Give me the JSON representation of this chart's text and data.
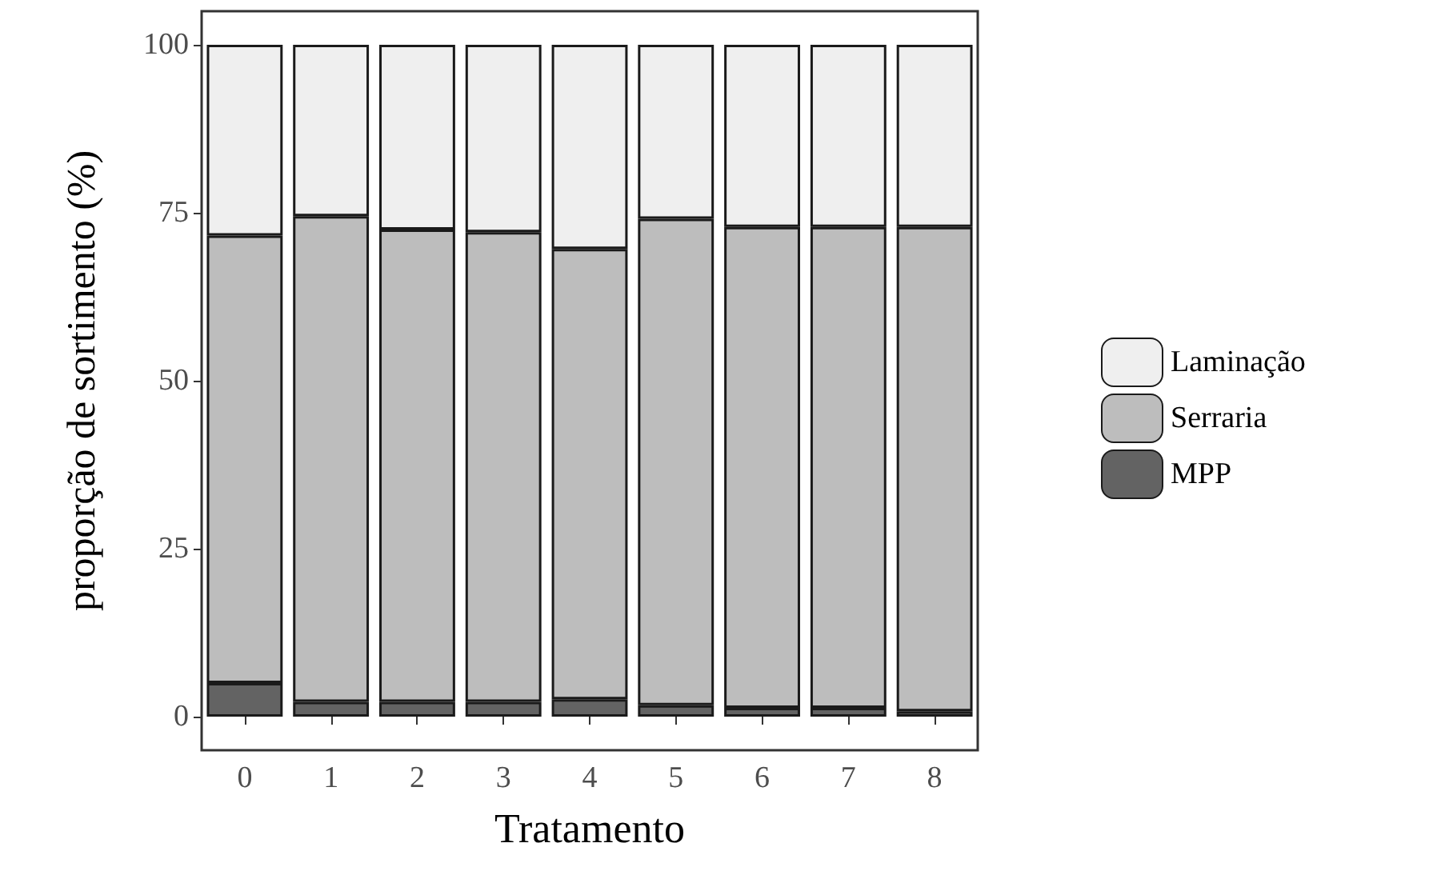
{
  "chart_data": {
    "type": "bar",
    "stacked": true,
    "xlabel": "Tratamento",
    "ylabel": "proporção de sortimento (%)",
    "categories": [
      "0",
      "1",
      "2",
      "3",
      "4",
      "5",
      "6",
      "7",
      "8"
    ],
    "series": [
      {
        "name": "MPP",
        "color": "#636363",
        "values": [
          5.0,
          2.2,
          2.2,
          2.2,
          2.6,
          1.7,
          1.3,
          1.3,
          0.8
        ]
      },
      {
        "name": "Serraria",
        "color": "#bdbdbd",
        "values": [
          66.6,
          72.3,
          70.3,
          69.9,
          67.0,
          72.4,
          71.6,
          71.6,
          72.1
        ]
      },
      {
        "name": "Laminação",
        "color": "#efefef",
        "values": [
          28.4,
          25.5,
          27.5,
          27.9,
          30.4,
          25.9,
          27.1,
          27.1,
          27.1
        ]
      }
    ],
    "ylim": [
      -5,
      105
    ],
    "yticks": [
      0,
      25,
      50,
      75,
      100
    ],
    "grid": false,
    "legend": "right"
  }
}
